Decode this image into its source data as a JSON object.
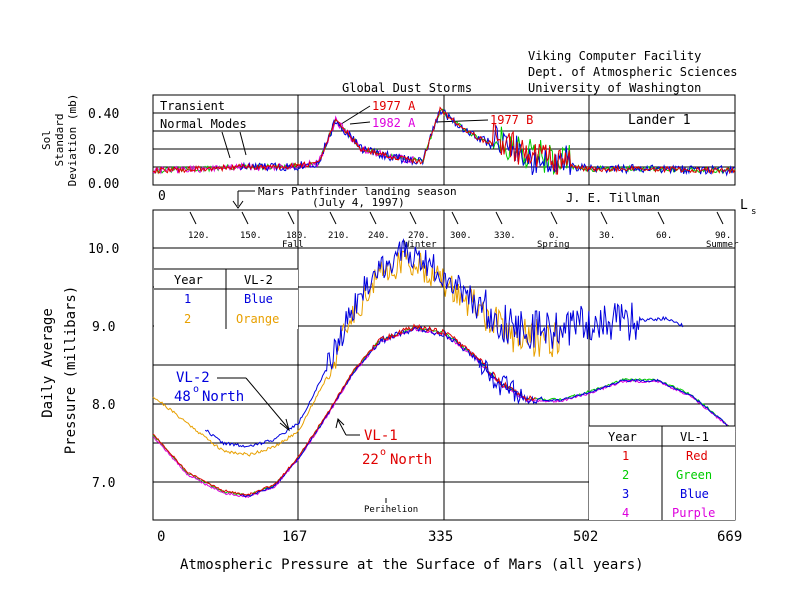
{
  "header": {
    "facility": [
      "Viking Computer Facility",
      "Dept. of Atmospheric Sciences",
      "University of Washington"
    ],
    "author": "J. E. Tillman",
    "main_title": "Atmospheric Pressure at the Surface of Mars (all years)"
  },
  "top_panel": {
    "ylabel": [
      "Sol",
      "Standard",
      "Deviation (mb)"
    ],
    "yticks": [
      "0.40",
      "0.20",
      "0.00"
    ],
    "x_start_label": "0",
    "transient_label": "Transient",
    "normal_modes_label": "Normal Modes",
    "dust_title": "Global Dust Storms",
    "storm_1977a": "1977 A",
    "storm_1982a": "1982 A",
    "storm_1977b": "1977 B",
    "lander_label": "Lander 1"
  },
  "pathfinder": {
    "label": "Mars Pathfinder landing season",
    "date": "(July 4, 1997)"
  },
  "ls_axis": {
    "label": "L",
    "subscript": "s",
    "ticks": [
      "120.",
      "150.",
      "180.",
      "210.",
      "240.",
      "270.",
      "300.",
      "330.",
      "0.",
      "30.",
      "60.",
      "90."
    ],
    "seasons": [
      "Fall",
      "Winter",
      "Spring",
      "Summer"
    ]
  },
  "main_panel": {
    "ylabel_line1": "Daily Average",
    "ylabel_line2": "Pressure (millibars)",
    "yticks": [
      "10.0",
      "9.0",
      "8.0",
      "7.0"
    ],
    "xticks": [
      "0",
      "167",
      "335",
      "502",
      "669"
    ],
    "perihelion_label": "Perihelion",
    "vl2_legend": {
      "col1": "Year",
      "col2": "VL-2",
      "rows": [
        [
          "1",
          "Blue"
        ],
        [
          "2",
          "Orange"
        ]
      ]
    },
    "vl1_legend": {
      "col1": "Year",
      "col2": "VL-1",
      "rows": [
        [
          "1",
          "Red"
        ],
        [
          "2",
          "Green"
        ],
        [
          "3",
          "Blue"
        ],
        [
          "4",
          "Purple"
        ]
      ]
    },
    "vl2_annotation": {
      "name": "VL-2",
      "lat": "48",
      "dir": "North"
    },
    "vl1_annotation": {
      "name": "VL-1",
      "lat": "22",
      "dir": "North"
    }
  },
  "colors": {
    "red": "#e00000",
    "green": "#00cc00",
    "blue": "#0000dd",
    "purple": "#dd00dd",
    "orange": "#e8a000",
    "axis": "#000000"
  },
  "chart_data": [
    {
      "type": "line",
      "title": "Atmospheric Pressure at the Surface of Mars (all years)",
      "xlabel": "",
      "ylabel": "Daily Average Pressure (millibars)",
      "xlim": [
        0,
        669
      ],
      "ylim": [
        6.5,
        10.5
      ],
      "series": [
        {
          "name": "VL-1",
          "x": [
            0,
            40,
            80,
            110,
            140,
            167,
            200,
            230,
            260,
            300,
            335,
            370,
            400,
            430,
            470,
            502,
            540,
            580,
            620,
            669
          ],
          "values": [
            7.6,
            7.1,
            6.87,
            6.82,
            6.95,
            7.3,
            7.85,
            8.4,
            8.8,
            8.97,
            8.9,
            8.6,
            8.25,
            8.05,
            8.05,
            8.15,
            8.3,
            8.3,
            8.1,
            7.65
          ]
        },
        {
          "name": "VL-2",
          "x": [
            0,
            40,
            80,
            110,
            140,
            167,
            200,
            230,
            260,
            290,
            310,
            335,
            370,
            400,
            430,
            470,
            502,
            540,
            590,
            610
          ],
          "values": [
            8.15,
            7.8,
            7.45,
            7.4,
            7.5,
            7.7,
            8.4,
            9.2,
            9.7,
            9.9,
            9.8,
            9.6,
            9.3,
            9.0,
            8.9,
            8.9,
            9.0,
            9.0,
            9.05,
            8.95
          ]
        }
      ]
    },
    {
      "type": "line",
      "title": "",
      "xlabel": "",
      "ylabel": "Sol Standard Deviation (mb)",
      "xlim": [
        0,
        669
      ],
      "ylim": [
        0,
        0.5
      ],
      "series": [
        {
          "name": "",
          "x": [
            0,
            60,
            100,
            150,
            190,
            210,
            240,
            280,
            310,
            330,
            360,
            400,
            440,
            500,
            560,
            669
          ],
          "values": [
            0.08,
            0.09,
            0.1,
            0.1,
            0.12,
            0.36,
            0.2,
            0.15,
            0.13,
            0.42,
            0.3,
            0.2,
            0.12,
            0.09,
            0.09,
            0.08
          ]
        }
      ]
    }
  ]
}
